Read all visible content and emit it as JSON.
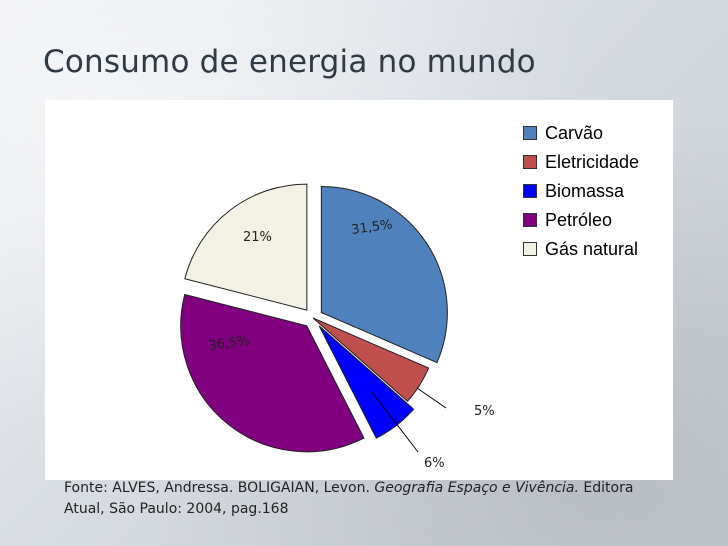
{
  "slide": {
    "title": "Consumo de energia no mundo",
    "source_line1_prefix": "Fonte: ALVES, Andressa. BOLIGAIAN, Levon. ",
    "source_book": "Geografia Espaço e Vivência.",
    "source_line1_suffix": " Editora",
    "source_line2": "Atual, São Paulo: 2004, pag.168"
  },
  "chart_data": {
    "type": "pie",
    "title": "",
    "series": [
      {
        "name": "Carvão",
        "value": 31.5,
        "label": "31,5%",
        "color": "#4f81bd",
        "exploded": true
      },
      {
        "name": "Eletricidade",
        "value": 5,
        "label": "5%",
        "color": "#c0504d",
        "exploded": false
      },
      {
        "name": "Biomassa",
        "value": 6,
        "label": "6%",
        "color": "#0000ff",
        "exploded": true
      },
      {
        "name": "Petróleo",
        "value": 36.5,
        "label": "36,5%",
        "color": "#800080",
        "exploded": true
      },
      {
        "name": "Gás natural",
        "value": 21,
        "label": "21%",
        "color": "#f3f0e4",
        "exploded": true
      }
    ],
    "legend_position": "top-right"
  }
}
